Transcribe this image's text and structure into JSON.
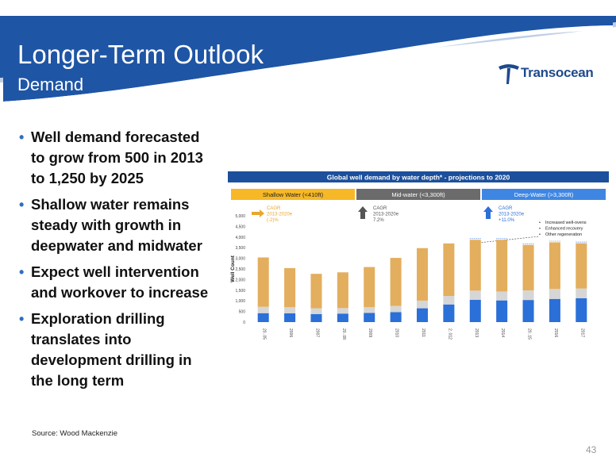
{
  "header": {
    "title": "Longer-Term Outlook",
    "subtitle": "Demand",
    "logo_text": "Transocean"
  },
  "bullets": [
    "Well demand forecasted to grow from 500 in 2013 to 1,250 by 2025",
    "Shallow water remains steady with growth in deepwater and midwater",
    "Expect well intervention and workover to increase",
    "Exploration drilling translates into development drilling in the long term"
  ],
  "source": "Source: Wood Mackenzie",
  "page_number": "43",
  "colors": {
    "header_blue": "#1f55a5",
    "shallow": "#e3ae5d",
    "shallow_header": "#f7b827",
    "mid": "#d6d6d6",
    "mid_header": "#6b6b6b",
    "deep": "#2b6fd8",
    "deep_header": "#3f86e3",
    "chart_title_bg": "#1c4f9c"
  },
  "chart_data": {
    "type": "bar",
    "stacked": true,
    "title": "Global well demand by water depth* - projections to 2020",
    "ylabel": "Well Count",
    "ylim": [
      0,
      5000
    ],
    "yticks": [
      "0",
      "500",
      "1,000",
      "1,500",
      "2,000",
      "2,500",
      "3,000",
      "3,500",
      "4,000",
      "4,500",
      "5,000"
    ],
    "categories": [
      "2005",
      "2006",
      "2007",
      "2008",
      "2009",
      "2010",
      "2011",
      "2012",
      "2013",
      "2014",
      "2015",
      "2016",
      "2017"
    ],
    "category_labels": [
      "20..05",
      "2006",
      "2007",
      "20..08",
      "2009",
      "2010",
      "2011",
      "2..012",
      "2013",
      "2014",
      "20..15",
      "2016",
      "2017"
    ],
    "series": [
      {
        "name": "Deep-Water (>3,300ft)",
        "color": "#2b6fd8",
        "values": [
          420,
          410,
          380,
          400,
          430,
          470,
          650,
          830,
          1050,
          1020,
          1040,
          1090,
          1120
        ]
      },
      {
        "name": "Mid-water (<3,300ft)",
        "color": "#d6d6d6",
        "values": [
          300,
          290,
          270,
          260,
          270,
          290,
          360,
          400,
          430,
          420,
          450,
          470,
          460
        ]
      },
      {
        "name": "Shallow Water (<410ft)",
        "color": "#e3ae5d",
        "values": [
          2320,
          1840,
          1620,
          1680,
          1890,
          2260,
          2470,
          2470,
          2390,
          2430,
          2140,
          2190,
          2130
        ]
      }
    ],
    "legend": [
      {
        "label": "Shallow Water (<410ft)",
        "bg": "#f7b827",
        "text_color": "#222222"
      },
      {
        "label": "Mid-water (<3,300ft)",
        "bg": "#6b6b6b",
        "text_color": "#ffffff"
      },
      {
        "label": "Deep-Water (>3,300ft)",
        "bg": "#3f86e3",
        "text_color": "#ffffff"
      }
    ],
    "cagr_labels": [
      {
        "lines": [
          "CAGR",
          "2013-2020e",
          "(-2)%"
        ],
        "color": "#e8a72d",
        "arrow": "right"
      },
      {
        "lines": [
          "CAGR",
          "2013-2020e",
          "7.2%"
        ],
        "color": "#555555",
        "arrow": "up"
      },
      {
        "lines": [
          "CAGR",
          "2013-2020e",
          "+11.0%"
        ],
        "color": "#2b6fd8",
        "arrow": "up"
      }
    ],
    "annotations": [
      "Increased well-ovens",
      "Enhanced recovery",
      "Other regeneration"
    ]
  }
}
